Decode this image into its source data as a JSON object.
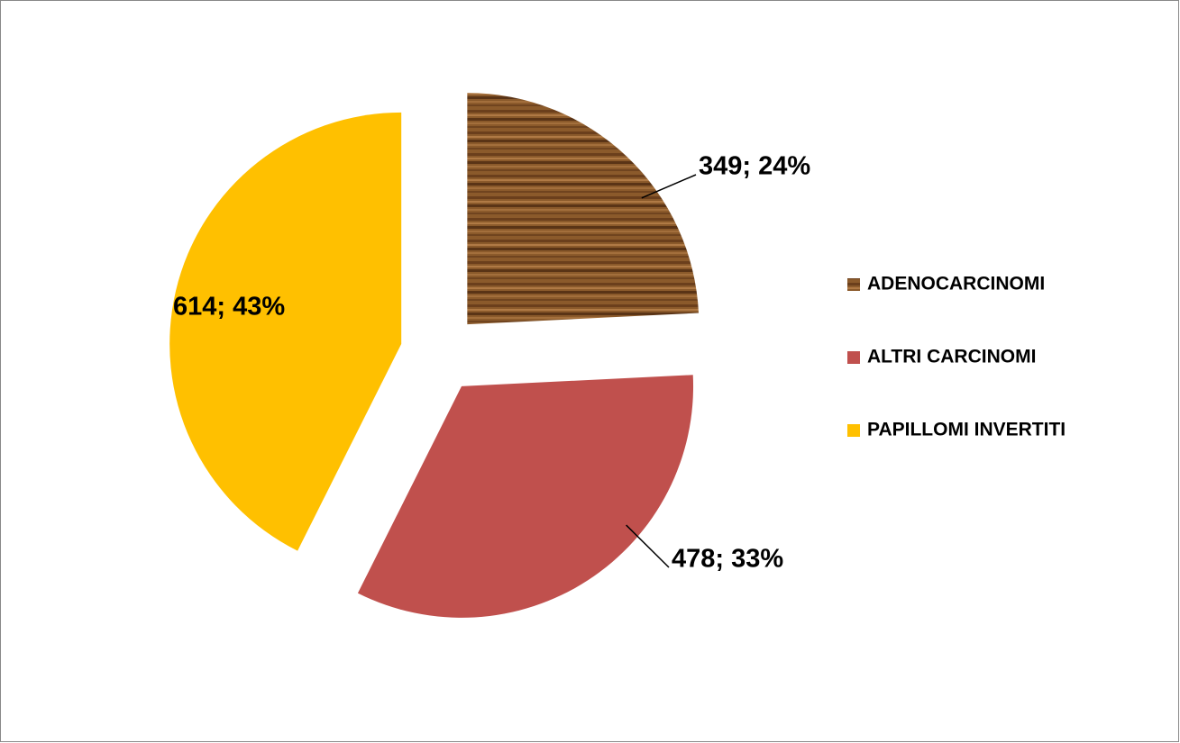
{
  "chart_data": {
    "type": "pie",
    "categories": [
      "ADENOCARCINOMI",
      "ALTRI CARCINOMI",
      "PAPILLOMI INVERTITI"
    ],
    "values": [
      349,
      478,
      614
    ],
    "value_labels": [
      "349; 24%",
      "478; 33%",
      "614; 43%"
    ],
    "colors": [
      "#8b5a2b",
      "#c0504d",
      "#ffc000"
    ],
    "legend": "right"
  }
}
